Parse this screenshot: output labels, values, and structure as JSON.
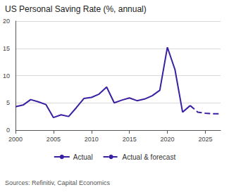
{
  "chart_data": {
    "type": "line",
    "title": "US Personal Saving Rate (%, annual)",
    "annotations": [
      "Sources: Refinitiv, Capital Economics"
    ],
    "x": [
      2000,
      2001,
      2002,
      2003,
      2004,
      2005,
      2006,
      2007,
      2008,
      2009,
      2010,
      2011,
      2012,
      2013,
      2014,
      2015,
      2016,
      2017,
      2018,
      2019,
      2020,
      2021,
      2022,
      2023,
      2024,
      2025,
      2026,
      2027
    ],
    "series": [
      {
        "name": "Actual",
        "color": "#3b1fa3",
        "line_style": "solid",
        "values": [
          4.3,
          4.6,
          5.6,
          5.2,
          4.7,
          2.3,
          2.8,
          2.5,
          4.1,
          5.8,
          6.0,
          6.6,
          7.9,
          5.0,
          5.5,
          5.9,
          5.4,
          5.7,
          6.3,
          7.3,
          15.2,
          11.1,
          3.3,
          4.5,
          null,
          null,
          null,
          null
        ]
      },
      {
        "name": "Actual & forecast",
        "color": "#3b1fa3",
        "line_style": "dashed",
        "values": [
          null,
          null,
          null,
          null,
          null,
          null,
          null,
          null,
          null,
          null,
          null,
          null,
          null,
          null,
          null,
          null,
          null,
          null,
          null,
          null,
          null,
          null,
          null,
          4.5,
          3.3,
          3.1,
          3.0,
          3.0
        ]
      }
    ],
    "xlim": [
      2000,
      2027
    ],
    "xticks": [
      2000,
      2005,
      2010,
      2015,
      2020,
      2025
    ],
    "ylim": [
      0,
      20
    ],
    "yticks": [
      0,
      5,
      10,
      15,
      20
    ],
    "grid": true,
    "legend": "bottom"
  }
}
